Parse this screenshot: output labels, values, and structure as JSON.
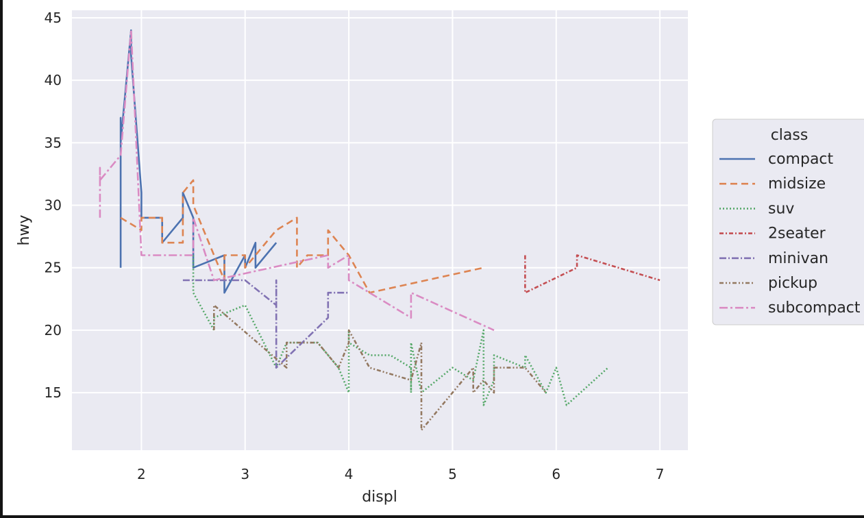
{
  "chart_data": {
    "type": "line",
    "xlabel": "displ",
    "ylabel": "hwy",
    "xlim": [
      1.33,
      7.27
    ],
    "ylim": [
      10.4,
      45.6
    ],
    "xticks": [
      2,
      3,
      4,
      5,
      6,
      7
    ],
    "yticks": [
      15,
      20,
      25,
      30,
      35,
      40,
      45
    ],
    "grid": true,
    "legend_title": "class",
    "legend_position": "right",
    "series": [
      {
        "name": "compact",
        "color": "#4c72b0",
        "dash": "",
        "x": [
          1.8,
          1.8,
          1.8,
          1.8,
          1.9,
          1.9,
          2.0,
          2.0,
          2.0,
          2.2,
          2.2,
          2.4,
          2.4,
          2.5,
          2.5,
          2.5,
          2.8,
          2.8,
          3.0,
          3.0,
          3.1,
          3.1,
          3.3
        ],
        "y": [
          25,
          37,
          36,
          35,
          44,
          42,
          31,
          29,
          29,
          29,
          27,
          29,
          31,
          29,
          27,
          25,
          26,
          23,
          26,
          25,
          27,
          25,
          27
        ]
      },
      {
        "name": "midsize",
        "color": "#dd8452",
        "dash": "10,6",
        "x": [
          1.8,
          2.0,
          2.0,
          2.2,
          2.2,
          2.4,
          2.4,
          2.5,
          2.5,
          2.8,
          2.8,
          3.0,
          3.0,
          3.3,
          3.5,
          3.5,
          3.6,
          3.8,
          3.8,
          4.0,
          4.2,
          5.3
        ],
        "y": [
          29,
          28,
          29,
          29,
          27,
          27,
          31,
          32,
          30,
          24,
          26,
          26,
          25,
          28,
          29,
          25,
          26,
          26,
          28,
          26,
          23,
          25
        ]
      },
      {
        "name": "suv",
        "color": "#55a868",
        "dash": "2,3",
        "x": [
          2.5,
          2.5,
          2.5,
          2.7,
          2.7,
          3.0,
          3.3,
          3.4,
          3.7,
          3.9,
          4.0,
          4.0,
          4.0,
          4.0,
          4.2,
          4.4,
          4.6,
          4.6,
          4.6,
          4.7,
          5.0,
          5.2,
          5.3,
          5.3,
          5.4,
          5.4,
          5.4,
          5.7,
          5.7,
          5.9,
          6.0,
          6.1,
          6.5
        ],
        "y": [
          26,
          25,
          23,
          20,
          21,
          22,
          17,
          19,
          19,
          17,
          15,
          17,
          20,
          19,
          18,
          18,
          17,
          15,
          19,
          15,
          17,
          16,
          20,
          14,
          16,
          18,
          18,
          17,
          18,
          15,
          17,
          14,
          17
        ]
      },
      {
        "name": "2seater",
        "color": "#c44e52",
        "dash": "6,3,2,3",
        "x": [
          5.7,
          5.7,
          6.2,
          6.2,
          7.0
        ],
        "y": [
          26,
          23,
          25,
          26,
          24
        ]
      },
      {
        "name": "minivan",
        "color": "#8172b3",
        "dash": "10,3,2,3",
        "x": [
          2.4,
          3.0,
          3.3,
          3.3,
          3.3,
          3.8,
          3.8,
          3.8,
          4.0
        ],
        "y": [
          24,
          24,
          22,
          24,
          17,
          21,
          22,
          23,
          23
        ]
      },
      {
        "name": "pickup",
        "color": "#937860",
        "dash": "6,3,2,3,2,3",
        "x": [
          2.7,
          2.7,
          3.4,
          3.4,
          3.7,
          3.9,
          4.0,
          4.0,
          4.2,
          4.6,
          4.7,
          4.7,
          4.7,
          5.2,
          5.2,
          5.3,
          5.4,
          5.4,
          5.7,
          5.9
        ],
        "y": [
          20,
          22,
          17,
          19,
          19,
          17,
          19,
          20,
          17,
          16,
          19,
          17,
          12,
          17,
          15,
          16,
          15,
          17,
          17,
          15
        ]
      },
      {
        "name": "subcompact",
        "color": "#da8bc3",
        "dash": "12,4,3,4",
        "x": [
          1.6,
          1.6,
          1.6,
          1.8,
          1.9,
          2.0,
          2.4,
          2.5,
          2.5,
          2.7,
          3.8,
          3.8,
          4.0,
          4.0,
          4.6,
          4.6,
          5.4
        ],
        "y": [
          29,
          33,
          32,
          34,
          44,
          26,
          26,
          26,
          29,
          24,
          26,
          25,
          26,
          24,
          21,
          23,
          20
        ]
      }
    ]
  }
}
